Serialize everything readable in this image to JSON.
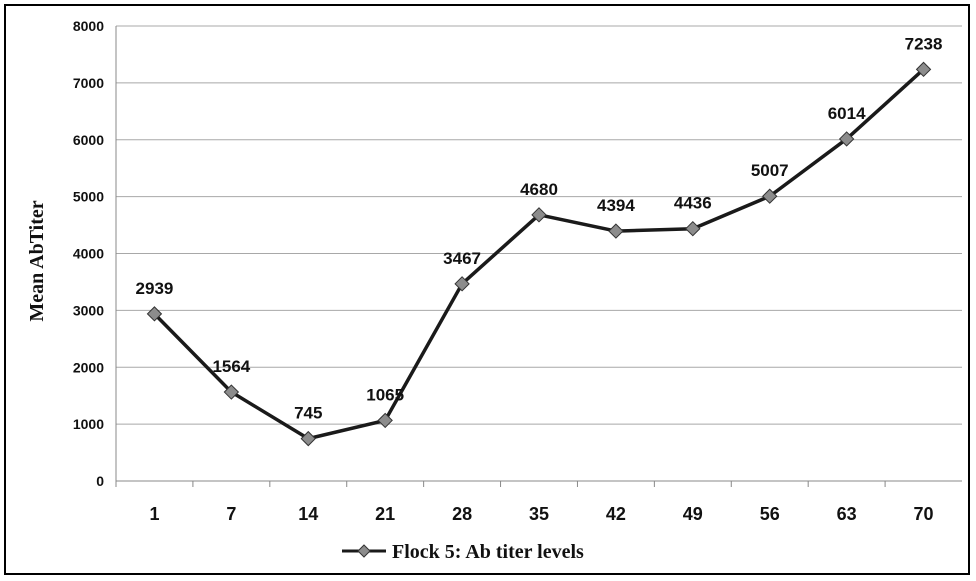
{
  "chart_data": {
    "type": "line",
    "x": [
      "1",
      "7",
      "14",
      "21",
      "28",
      "35",
      "42",
      "49",
      "56",
      "63",
      "70"
    ],
    "series": [
      {
        "name": "Flock 5: Ab titer levels",
        "values": [
          2939,
          1564,
          745,
          1065,
          3467,
          4680,
          4394,
          4436,
          5007,
          6014,
          7238
        ],
        "color": "#1a1a1a",
        "marker": "diamond"
      }
    ],
    "ylabel": "Mean AbTiter",
    "xlabel": "",
    "ylim": [
      0,
      8000
    ],
    "yticks": [
      "0",
      "1000",
      "2000",
      "3000",
      "4000",
      "5000",
      "6000",
      "7000",
      "8000"
    ],
    "grid": true,
    "legend": "bottom-center",
    "data_labels": [
      "2939",
      "1564",
      "745",
      "1065",
      "3467",
      "4680",
      "4394",
      "4436",
      "5007",
      "6014",
      "7238"
    ]
  }
}
